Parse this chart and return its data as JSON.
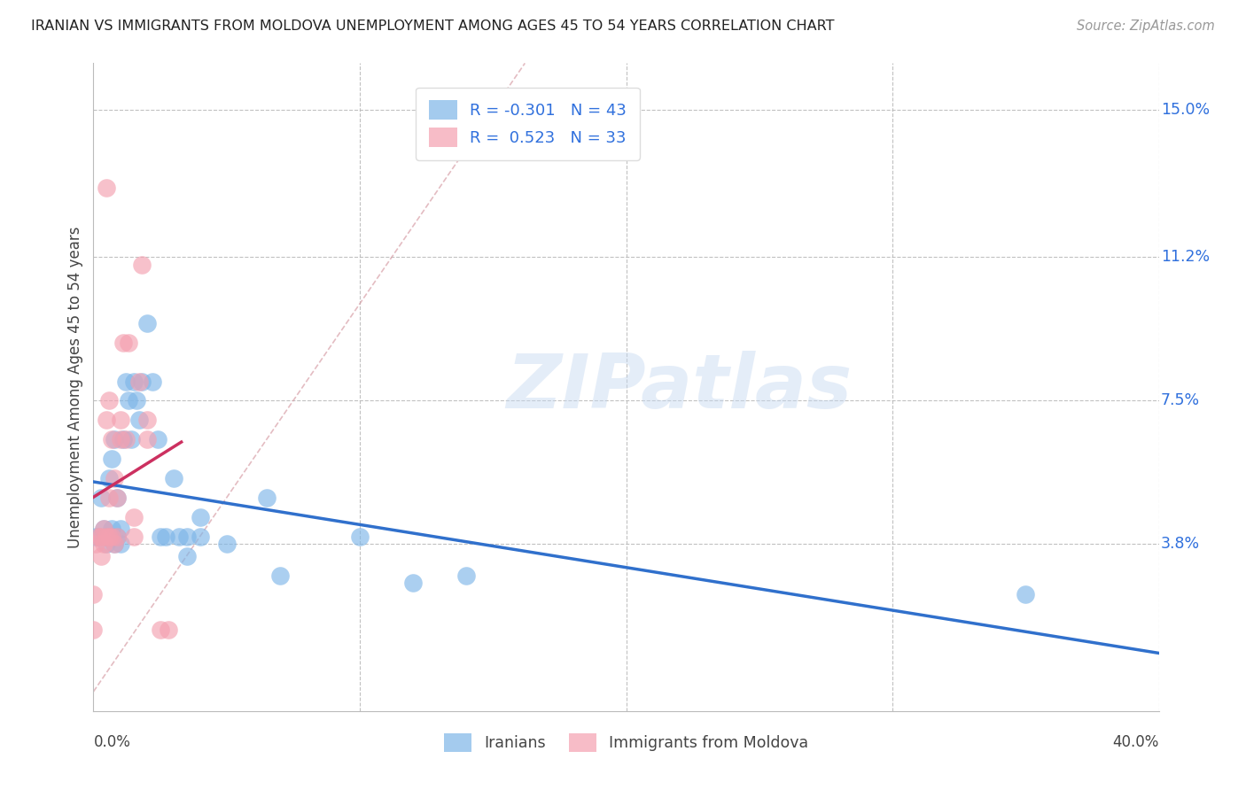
{
  "title": "IRANIAN VS IMMIGRANTS FROM MOLDOVA UNEMPLOYMENT AMONG AGES 45 TO 54 YEARS CORRELATION CHART",
  "source": "Source: ZipAtlas.com",
  "ylabel": "Unemployment Among Ages 45 to 54 years",
  "ytick_labels": [
    "15.0%",
    "11.2%",
    "7.5%",
    "3.8%"
  ],
  "ytick_values": [
    0.15,
    0.112,
    0.075,
    0.038
  ],
  "xgrid_values": [
    0.1,
    0.2,
    0.3,
    0.4
  ],
  "xmin": 0.0,
  "xmax": 0.4,
  "ymin": -0.005,
  "ymax": 0.162,
  "iranians_color": "#7EB6E8",
  "moldova_color": "#F4A0B0",
  "trend_blue": "#3070CC",
  "trend_pink": "#CC3060",
  "diag_color": "#D8A0A8",
  "label_blue": "#3070DD",
  "iranians_R": -0.301,
  "iranians_N": 43,
  "moldova_R": 0.523,
  "moldova_N": 33,
  "legend_label1": "Iranians",
  "legend_label2": "Immigrants from Moldova",
  "watermark": "ZIPatlas",
  "iranians_scatter_x": [
    0.001,
    0.002,
    0.003,
    0.004,
    0.005,
    0.005,
    0.006,
    0.006,
    0.007,
    0.007,
    0.007,
    0.008,
    0.008,
    0.009,
    0.009,
    0.01,
    0.01,
    0.011,
    0.012,
    0.013,
    0.014,
    0.015,
    0.016,
    0.017,
    0.018,
    0.02,
    0.022,
    0.024,
    0.025,
    0.027,
    0.03,
    0.032,
    0.035,
    0.035,
    0.04,
    0.04,
    0.05,
    0.065,
    0.07,
    0.1,
    0.12,
    0.14,
    0.35
  ],
  "iranians_scatter_y": [
    0.04,
    0.04,
    0.05,
    0.042,
    0.038,
    0.04,
    0.04,
    0.055,
    0.04,
    0.042,
    0.06,
    0.038,
    0.065,
    0.04,
    0.05,
    0.038,
    0.042,
    0.065,
    0.08,
    0.075,
    0.065,
    0.08,
    0.075,
    0.07,
    0.08,
    0.095,
    0.08,
    0.065,
    0.04,
    0.04,
    0.055,
    0.04,
    0.04,
    0.035,
    0.04,
    0.045,
    0.038,
    0.05,
    0.03,
    0.04,
    0.028,
    0.03,
    0.025
  ],
  "moldova_scatter_x": [
    0.0,
    0.0,
    0.001,
    0.002,
    0.003,
    0.003,
    0.004,
    0.004,
    0.005,
    0.005,
    0.005,
    0.006,
    0.006,
    0.006,
    0.007,
    0.007,
    0.008,
    0.008,
    0.009,
    0.009,
    0.01,
    0.01,
    0.011,
    0.012,
    0.013,
    0.015,
    0.015,
    0.017,
    0.018,
    0.02,
    0.02,
    0.025,
    0.028
  ],
  "moldova_scatter_y": [
    0.016,
    0.025,
    0.038,
    0.04,
    0.035,
    0.04,
    0.038,
    0.042,
    0.04,
    0.07,
    0.13,
    0.04,
    0.05,
    0.075,
    0.04,
    0.065,
    0.038,
    0.055,
    0.04,
    0.05,
    0.065,
    0.07,
    0.09,
    0.065,
    0.09,
    0.04,
    0.045,
    0.08,
    0.11,
    0.065,
    0.07,
    0.016,
    0.016
  ]
}
